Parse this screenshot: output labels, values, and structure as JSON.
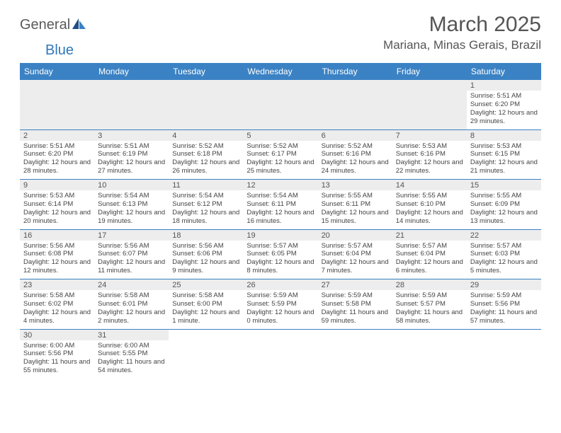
{
  "brand": {
    "part1": "General",
    "part2": "Blue"
  },
  "title": "March 2025",
  "location": "Mariana, Minas Gerais, Brazil",
  "colors": {
    "header_bg": "#3b82c4",
    "header_text": "#ffffff",
    "daynum_bg": "#ededed",
    "border": "#3b82c4",
    "text": "#444444",
    "title_text": "#555555",
    "brand_dark": "#5a5a5a",
    "brand_blue": "#2f78bb"
  },
  "day_headers": [
    "Sunday",
    "Monday",
    "Tuesday",
    "Wednesday",
    "Thursday",
    "Friday",
    "Saturday"
  ],
  "weeks": [
    [
      null,
      null,
      null,
      null,
      null,
      null,
      {
        "n": "1",
        "sr": "5:51 AM",
        "ss": "6:20 PM",
        "dl": "12 hours and 29 minutes."
      }
    ],
    [
      {
        "n": "2",
        "sr": "5:51 AM",
        "ss": "6:20 PM",
        "dl": "12 hours and 28 minutes."
      },
      {
        "n": "3",
        "sr": "5:51 AM",
        "ss": "6:19 PM",
        "dl": "12 hours and 27 minutes."
      },
      {
        "n": "4",
        "sr": "5:52 AM",
        "ss": "6:18 PM",
        "dl": "12 hours and 26 minutes."
      },
      {
        "n": "5",
        "sr": "5:52 AM",
        "ss": "6:17 PM",
        "dl": "12 hours and 25 minutes."
      },
      {
        "n": "6",
        "sr": "5:52 AM",
        "ss": "6:16 PM",
        "dl": "12 hours and 24 minutes."
      },
      {
        "n": "7",
        "sr": "5:53 AM",
        "ss": "6:16 PM",
        "dl": "12 hours and 22 minutes."
      },
      {
        "n": "8",
        "sr": "5:53 AM",
        "ss": "6:15 PM",
        "dl": "12 hours and 21 minutes."
      }
    ],
    [
      {
        "n": "9",
        "sr": "5:53 AM",
        "ss": "6:14 PM",
        "dl": "12 hours and 20 minutes."
      },
      {
        "n": "10",
        "sr": "5:54 AM",
        "ss": "6:13 PM",
        "dl": "12 hours and 19 minutes."
      },
      {
        "n": "11",
        "sr": "5:54 AM",
        "ss": "6:12 PM",
        "dl": "12 hours and 18 minutes."
      },
      {
        "n": "12",
        "sr": "5:54 AM",
        "ss": "6:11 PM",
        "dl": "12 hours and 16 minutes."
      },
      {
        "n": "13",
        "sr": "5:55 AM",
        "ss": "6:11 PM",
        "dl": "12 hours and 15 minutes."
      },
      {
        "n": "14",
        "sr": "5:55 AM",
        "ss": "6:10 PM",
        "dl": "12 hours and 14 minutes."
      },
      {
        "n": "15",
        "sr": "5:55 AM",
        "ss": "6:09 PM",
        "dl": "12 hours and 13 minutes."
      }
    ],
    [
      {
        "n": "16",
        "sr": "5:56 AM",
        "ss": "6:08 PM",
        "dl": "12 hours and 12 minutes."
      },
      {
        "n": "17",
        "sr": "5:56 AM",
        "ss": "6:07 PM",
        "dl": "12 hours and 11 minutes."
      },
      {
        "n": "18",
        "sr": "5:56 AM",
        "ss": "6:06 PM",
        "dl": "12 hours and 9 minutes."
      },
      {
        "n": "19",
        "sr": "5:57 AM",
        "ss": "6:05 PM",
        "dl": "12 hours and 8 minutes."
      },
      {
        "n": "20",
        "sr": "5:57 AM",
        "ss": "6:04 PM",
        "dl": "12 hours and 7 minutes."
      },
      {
        "n": "21",
        "sr": "5:57 AM",
        "ss": "6:04 PM",
        "dl": "12 hours and 6 minutes."
      },
      {
        "n": "22",
        "sr": "5:57 AM",
        "ss": "6:03 PM",
        "dl": "12 hours and 5 minutes."
      }
    ],
    [
      {
        "n": "23",
        "sr": "5:58 AM",
        "ss": "6:02 PM",
        "dl": "12 hours and 4 minutes."
      },
      {
        "n": "24",
        "sr": "5:58 AM",
        "ss": "6:01 PM",
        "dl": "12 hours and 2 minutes."
      },
      {
        "n": "25",
        "sr": "5:58 AM",
        "ss": "6:00 PM",
        "dl": "12 hours and 1 minute."
      },
      {
        "n": "26",
        "sr": "5:59 AM",
        "ss": "5:59 PM",
        "dl": "12 hours and 0 minutes."
      },
      {
        "n": "27",
        "sr": "5:59 AM",
        "ss": "5:58 PM",
        "dl": "11 hours and 59 minutes."
      },
      {
        "n": "28",
        "sr": "5:59 AM",
        "ss": "5:57 PM",
        "dl": "11 hours and 58 minutes."
      },
      {
        "n": "29",
        "sr": "5:59 AM",
        "ss": "5:56 PM",
        "dl": "11 hours and 57 minutes."
      }
    ],
    [
      {
        "n": "30",
        "sr": "6:00 AM",
        "ss": "5:56 PM",
        "dl": "11 hours and 55 minutes."
      },
      {
        "n": "31",
        "sr": "6:00 AM",
        "ss": "5:55 PM",
        "dl": "11 hours and 54 minutes."
      },
      null,
      null,
      null,
      null,
      null
    ]
  ],
  "labels": {
    "sunrise": "Sunrise: ",
    "sunset": "Sunset: ",
    "daylight": "Daylight: "
  }
}
